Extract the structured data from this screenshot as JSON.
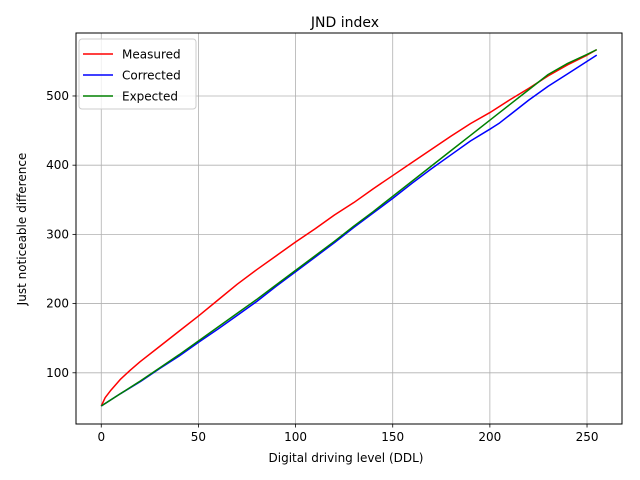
{
  "chart_data": {
    "type": "line",
    "title": "JND index",
    "xlabel": "Digital driving level (DDL)",
    "ylabel": "Just noticeable difference",
    "xlim": [
      -13,
      268
    ],
    "ylim": [
      26,
      591
    ],
    "xticks": [
      0,
      50,
      100,
      150,
      200,
      250
    ],
    "yticks": [
      100,
      200,
      300,
      400,
      500
    ],
    "grid": true,
    "legend_position": "top-left",
    "series": [
      {
        "name": "Measured",
        "color": "#ff0000",
        "points": [
          [
            0,
            52
          ],
          [
            2,
            64
          ],
          [
            5,
            75
          ],
          [
            10,
            91
          ],
          [
            15,
            104
          ],
          [
            20,
            116
          ],
          [
            30,
            138
          ],
          [
            40,
            160
          ],
          [
            50,
            182
          ],
          [
            60,
            205
          ],
          [
            70,
            228
          ],
          [
            80,
            249
          ],
          [
            90,
            269
          ],
          [
            100,
            289
          ],
          [
            110,
            308
          ],
          [
            120,
            328
          ],
          [
            130,
            346
          ],
          [
            140,
            366
          ],
          [
            150,
            385
          ],
          [
            160,
            404
          ],
          [
            170,
            423
          ],
          [
            180,
            442
          ],
          [
            190,
            460
          ],
          [
            200,
            476
          ],
          [
            210,
            494
          ],
          [
            220,
            511
          ],
          [
            230,
            529
          ],
          [
            240,
            545
          ],
          [
            250,
            559
          ],
          [
            255,
            567
          ]
        ]
      },
      {
        "name": "Corrected",
        "color": "#0000ff",
        "points": [
          [
            0,
            52
          ],
          [
            10,
            70
          ],
          [
            20,
            87
          ],
          [
            30,
            106
          ],
          [
            40,
            124
          ],
          [
            50,
            144
          ],
          [
            60,
            163
          ],
          [
            70,
            183
          ],
          [
            80,
            203
          ],
          [
            90,
            225
          ],
          [
            100,
            246
          ],
          [
            110,
            267
          ],
          [
            120,
            288
          ],
          [
            130,
            310
          ],
          [
            140,
            331
          ],
          [
            150,
            352
          ],
          [
            160,
            374
          ],
          [
            170,
            395
          ],
          [
            180,
            415
          ],
          [
            190,
            435
          ],
          [
            200,
            452
          ],
          [
            205,
            461
          ],
          [
            210,
            472
          ],
          [
            220,
            494
          ],
          [
            230,
            514
          ],
          [
            240,
            532
          ],
          [
            250,
            550
          ],
          [
            255,
            559
          ]
        ]
      },
      {
        "name": "Expected",
        "color": "#008000",
        "points": [
          [
            0,
            52
          ],
          [
            10,
            70
          ],
          [
            20,
            88
          ],
          [
            30,
            107
          ],
          [
            40,
            126
          ],
          [
            50,
            146
          ],
          [
            60,
            166
          ],
          [
            70,
            186
          ],
          [
            80,
            206
          ],
          [
            90,
            227
          ],
          [
            100,
            248
          ],
          [
            110,
            269
          ],
          [
            120,
            290
          ],
          [
            130,
            312
          ],
          [
            140,
            333
          ],
          [
            150,
            355
          ],
          [
            160,
            377
          ],
          [
            170,
            399
          ],
          [
            180,
            421
          ],
          [
            190,
            443
          ],
          [
            200,
            465
          ],
          [
            210,
            487
          ],
          [
            220,
            509
          ],
          [
            230,
            531
          ],
          [
            240,
            547
          ],
          [
            250,
            560
          ],
          [
            255,
            567
          ]
        ]
      }
    ]
  }
}
